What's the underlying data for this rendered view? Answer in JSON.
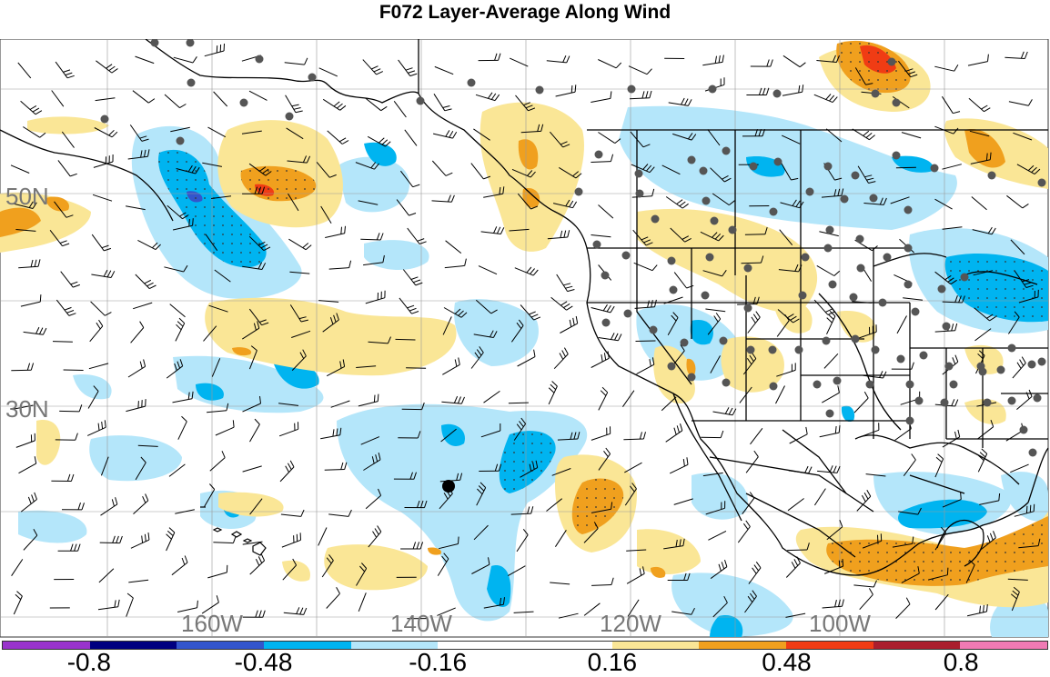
{
  "title": "F072 Layer-Average Along Wind",
  "map": {
    "lat_labels": [
      "50N",
      "30N"
    ],
    "lon_labels": [
      "160W",
      "140W",
      "120W",
      "100W"
    ],
    "colors": {
      "purple": "#9933cc",
      "navy": "#000080",
      "royal": "#3355cc",
      "cyan": "#00b4f0",
      "lightblue": "#b4e6fa",
      "white": "#ffffff",
      "yellow": "#fae696",
      "orange": "#f0a01e",
      "red": "#f03c14",
      "darkred": "#aa1e2d",
      "pink": "#f07ab4"
    }
  },
  "colorbar": {
    "colors": [
      "#9933cc",
      "#000080",
      "#3355cc",
      "#00b4f0",
      "#b4e6fa",
      "#ffffff",
      "#ffffff",
      "#fae696",
      "#f0a01e",
      "#f03c14",
      "#aa1e2d",
      "#f07ab4"
    ],
    "labels": [
      "-0.8",
      "-0.48",
      "-0.16",
      "0.16",
      "0.48",
      "0.8"
    ]
  }
}
